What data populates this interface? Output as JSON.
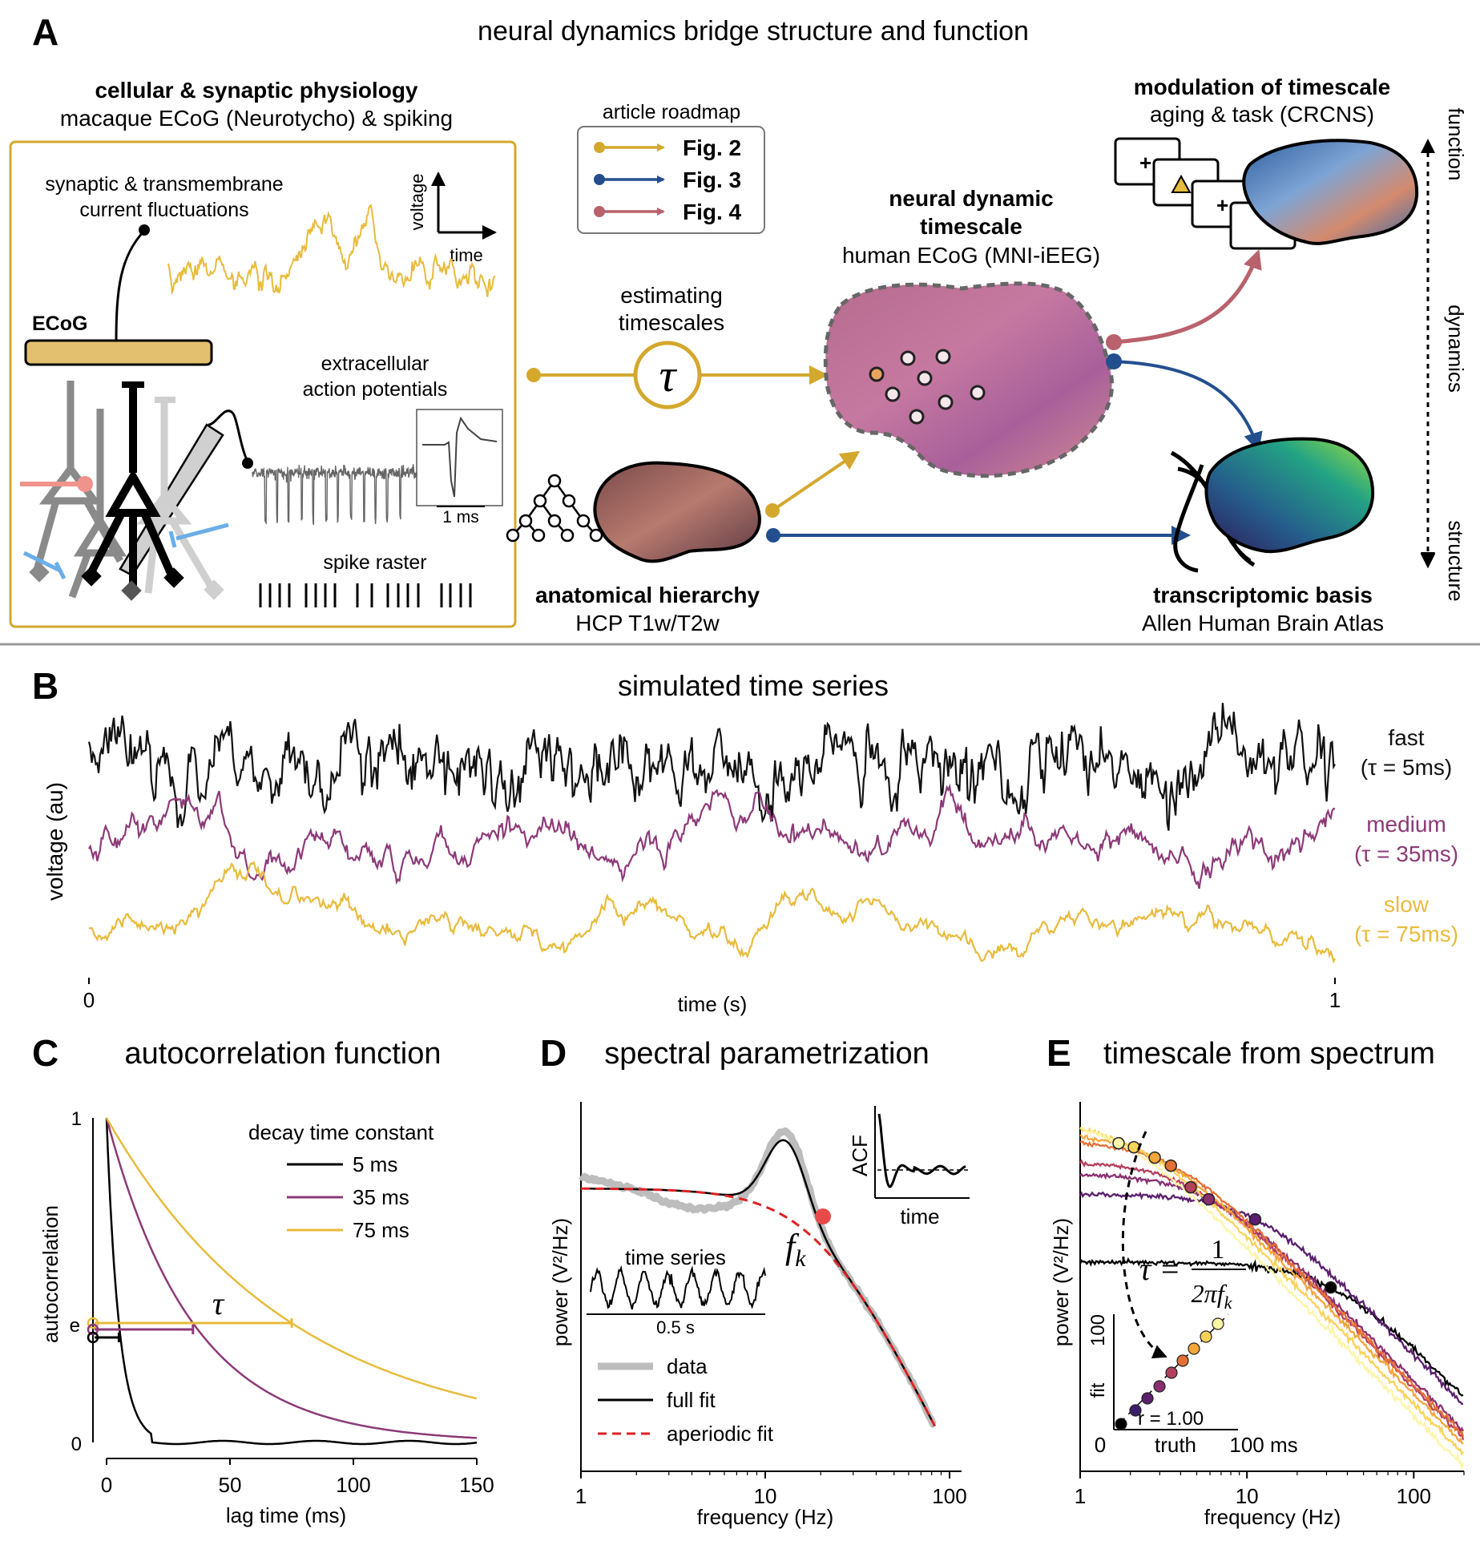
{
  "panelA": {
    "letter": "A",
    "title": "neural dynamics bridge structure and function",
    "cellular": {
      "heading": "cellular & synaptic physiology",
      "subheading": "macaque ECoG (Neurotycho) & spiking",
      "synaptic_label_1": "synaptic & transmembrane",
      "synaptic_label_2": "current fluctuations",
      "voltage_label": "voltage",
      "time_label": "time",
      "ecog_label": "ECoG",
      "extracellular_1": "extracellular",
      "extracellular_2": "action potentials",
      "scale_label": "1 ms",
      "raster_label": "spike raster"
    },
    "roadmap": {
      "title": "article roadmap",
      "items": [
        {
          "label": "Fig. 2",
          "color": "#d4a82d"
        },
        {
          "label": "Fig. 3",
          "color": "#234f8f"
        },
        {
          "label": "Fig. 4",
          "color": "#b9616c"
        }
      ]
    },
    "estimating_1": "estimating",
    "estimating_2": "timescales",
    "tau_symbol": "τ",
    "timescale_node": {
      "line1": "neural dynamic",
      "line2": "timescale",
      "line3": "human ECoG (MNI-iEEG)"
    },
    "modulation_node": {
      "line1": "modulation of timescale",
      "line2": "aging & task (CRCNS)"
    },
    "anatomical_node": {
      "line1": "anatomical hierarchy",
      "line2": "HCP T1w/T2w"
    },
    "transcriptomic_node": {
      "line1": "transcriptomic basis",
      "line2": "Allen Human Brain Atlas"
    },
    "axis_function": "function",
    "axis_dynamics": "dynamics",
    "axis_structure": "structure"
  },
  "panelB": {
    "letter": "B",
    "title": "simulated time series",
    "ylabel": "voltage (au)",
    "xlabel": "time (s)",
    "xtick_start": "0",
    "xtick_end": "1",
    "series": [
      {
        "name": "fast",
        "tau_label": "(τ = 5ms)",
        "color": "#111111"
      },
      {
        "name": "medium",
        "tau_label": "(τ = 35ms)",
        "color": "#8c3a78"
      },
      {
        "name": "slow",
        "tau_label": "(τ = 75ms)",
        "color": "#e8bb3c"
      }
    ]
  },
  "panelC": {
    "letter": "C",
    "title": "autocorrelation function",
    "ylabel": "autocorrelation",
    "xlabel": "lag time (ms)",
    "legend_title": "decay time constant",
    "tau_marker": "τ",
    "yticks": [
      "0",
      "e",
      "1"
    ],
    "xticks": [
      "0",
      "50",
      "100",
      "150"
    ]
  },
  "panelD": {
    "letter": "D",
    "title": "spectral parametrization",
    "ylabel": "power (V²/Hz)",
    "xlabel": "frequency (Hz)",
    "xticks": [
      "1",
      "10",
      "100"
    ],
    "knee_label": "f",
    "knee_sub": "k",
    "inset_acf_ylabel": "ACF",
    "inset_acf_xlabel": "time",
    "inset_ts_title": "time series",
    "inset_ts_scale": "0.5 s",
    "legend": [
      "data",
      "full fit",
      "aperiodic fit"
    ]
  },
  "panelE": {
    "letter": "E",
    "title": "timescale from spectrum",
    "ylabel": "power (V²/Hz)",
    "xlabel": "frequency (Hz)",
    "xticks": [
      "1",
      "10",
      "100"
    ],
    "formula_lhs": "τ =",
    "formula_num": "1",
    "formula_den": "2πf",
    "formula_den_sub": "k",
    "inset_ylabel": "fit",
    "inset_ytick": "100",
    "inset_x0": "0",
    "inset_xlabel": "truth",
    "inset_xmax": "100 ms",
    "inset_r": "r = 1.00"
  },
  "chart_data": [
    {
      "type": "line",
      "title": "simulated time series",
      "xlabel": "time (s)",
      "ylabel": "voltage (au)",
      "xlim": [
        0,
        1
      ],
      "series": [
        {
          "name": "fast",
          "tau_ms": 5
        },
        {
          "name": "medium",
          "tau_ms": 35
        },
        {
          "name": "slow",
          "tau_ms": 75
        }
      ]
    },
    {
      "type": "line",
      "title": "autocorrelation function",
      "xlabel": "lag time (ms)",
      "ylabel": "autocorrelation",
      "xlim": [
        0,
        150
      ],
      "ylim": [
        0,
        1
      ],
      "legend_title": "decay time constant",
      "series": [
        {
          "name": "5 ms",
          "tau_ms": 5,
          "color": "#000000"
        },
        {
          "name": "35 ms",
          "tau_ms": 35,
          "color": "#8c3a78"
        },
        {
          "name": "75 ms",
          "tau_ms": 75,
          "color": "#e8bb3c"
        }
      ]
    },
    {
      "type": "line",
      "title": "spectral parametrization",
      "xlabel": "frequency (Hz)",
      "ylabel": "power (V²/Hz)",
      "xscale": "log",
      "xlim": [
        1,
        100
      ],
      "series": [
        {
          "name": "data"
        },
        {
          "name": "full fit"
        },
        {
          "name": "aperiodic fit"
        }
      ]
    },
    {
      "type": "line",
      "title": "timescale from spectrum",
      "xlabel": "frequency (Hz)",
      "ylabel": "power (V²/Hz)",
      "xscale": "log",
      "xlim": [
        1,
        200
      ],
      "knee_hz": [
        1.7,
        2.1,
        2.8,
        3.5,
        4.6,
        5.9,
        11.2,
        31.8
      ],
      "knee_colors": [
        "#fdf5a8",
        "#fbd35a",
        "#f4a53b",
        "#e57034",
        "#b5405e",
        "#8a2f70",
        "#5a1f6e",
        "#000000"
      ],
      "inset": {
        "xlabel": "truth",
        "ylabel": "fit",
        "r": 1.0
      }
    }
  ]
}
